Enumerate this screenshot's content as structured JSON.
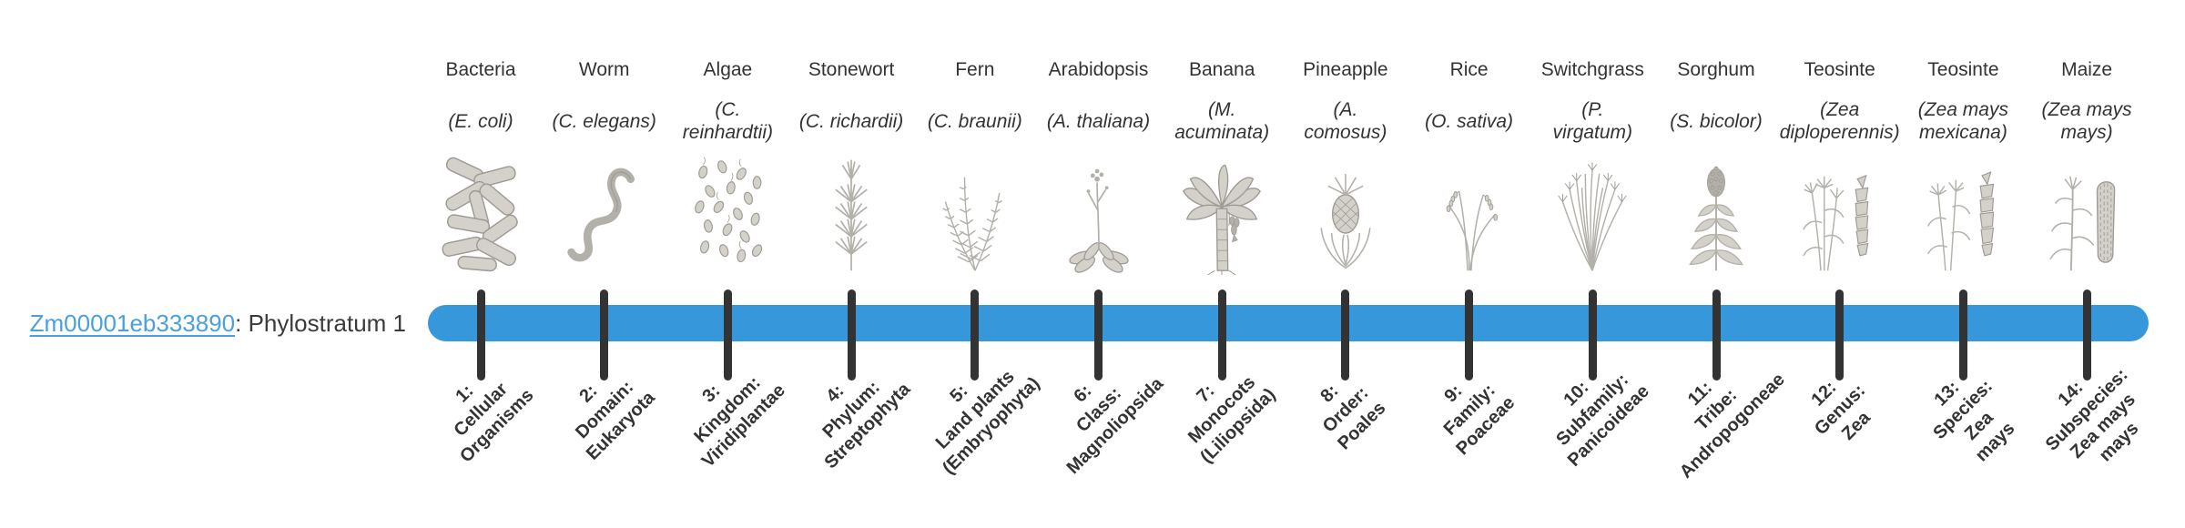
{
  "page": {
    "background": "#ffffff"
  },
  "gene_label": {
    "gene_id": "Zm00001eb333890",
    "separator": ": ",
    "description": "Phylostratum 1"
  },
  "timeline": {
    "bar_color": "#3797db",
    "tick_color": "#333333",
    "link_color": "#4aa0dc",
    "tick_count": 14
  },
  "organisms": [
    {
      "common_name": "Bacteria",
      "scientific_name": "(E. coli)",
      "icon": "bacteria-icon",
      "phylostratum_label": "1:\nCellular\nOrganisms"
    },
    {
      "common_name": "Worm",
      "scientific_name": "(C. elegans)",
      "icon": "worm-icon",
      "phylostratum_label": "2:\nDomain:\nEukaryota"
    },
    {
      "common_name": "Algae",
      "scientific_name": "(C.\nreinhardtii)",
      "icon": "algae-icon",
      "phylostratum_label": "3:\nKingdom:\nViridiplantae"
    },
    {
      "common_name": "Stonewort",
      "scientific_name": "(C. richardii)",
      "icon": "stonewort-icon",
      "phylostratum_label": "4:\nPhylum:\nStreptophyta"
    },
    {
      "common_name": "Fern",
      "scientific_name": "(C. braunii)",
      "icon": "fern-icon",
      "phylostratum_label": "5:\nLand plants\n(Embryophyta)"
    },
    {
      "common_name": "Arabidopsis",
      "scientific_name": "(A. thaliana)",
      "icon": "arabidopsis-icon",
      "phylostratum_label": "6:\nClass:\nMagnoliopsida"
    },
    {
      "common_name": "Banana",
      "scientific_name": "(M.\nacuminata)",
      "icon": "banana-icon",
      "phylostratum_label": "7:\nMonocots\n(Liliopsida)"
    },
    {
      "common_name": "Pineapple",
      "scientific_name": "(A.\ncomosus)",
      "icon": "pineapple-icon",
      "phylostratum_label": "8:\nOrder:\nPoales"
    },
    {
      "common_name": "Rice",
      "scientific_name": "(O. sativa)",
      "icon": "rice-icon",
      "phylostratum_label": "9:\nFamily:\nPoaceae"
    },
    {
      "common_name": "Switchgrass",
      "scientific_name": "(P.\nvirgatum)",
      "icon": "switchgrass-icon",
      "phylostratum_label": "10:\nSubfamily:\nPanicoideae"
    },
    {
      "common_name": "Sorghum",
      "scientific_name": "(S. bicolor)",
      "icon": "sorghum-icon",
      "phylostratum_label": "11:\nTribe:\nAndropogoneae"
    },
    {
      "common_name": "Teosinte",
      "scientific_name": "(Zea\ndiploperennis)",
      "icon": "teosinte-diplo-icon",
      "phylostratum_label": "12:\nGenus:\nZea"
    },
    {
      "common_name": "Teosinte",
      "scientific_name": "(Zea mays\nmexicana)",
      "icon": "teosinte-mexicana-icon",
      "phylostratum_label": "13:\nSpecies:\nZea\nmays"
    },
    {
      "common_name": "Maize",
      "scientific_name": "(Zea mays\nmays)",
      "icon": "maize-icon",
      "phylostratum_label": "14:\nSubspecies:\nZea mays\nmays"
    }
  ]
}
